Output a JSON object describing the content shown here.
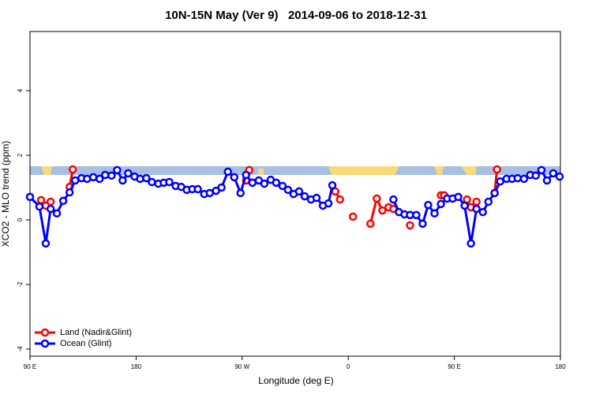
{
  "chart_data": {
    "type": "line",
    "title": "10N-15N May (Ver 9)   2014-09-06 to 2018-12-31",
    "x_label": "Longitude (deg E)",
    "y_label": "XCO2 - MLO trend (ppm)",
    "xlim": [
      90,
      540
    ],
    "ylim": [
      -4.22,
      5.83
    ],
    "xticks": [
      {
        "value": 90,
        "label": "90 E"
      },
      180,
      {
        "value": 270,
        "label": "90 W"
      },
      {
        "value": 360,
        "label": "0"
      },
      {
        "value": 450,
        "label": "90 E"
      },
      {
        "value": 540,
        "label": "180"
      }
    ],
    "yticks": [
      -4,
      -2,
      0,
      2,
      4
    ],
    "legend": "bottom-left",
    "series": [
      {
        "name": "Land (Nadir&Glint)",
        "color": "#ff0000",
        "x": [
          99.4,
          103.4,
          107.5,
          null,
          123.6,
          126.3,
          null,
          273.3,
          276,
          null,
          349,
          353,
          null,
          364,
          null,
          378.8,
          384.2,
          388.9,
          394.2,
          398.3,
          null,
          412.4,
          null,
          438.6,
          441.3,
          null,
          460.7,
          464.1,
          468.8,
          null,
          484.2,
          486.2
        ],
        "values": [
          0.61,
          0.44,
          0.56,
          null,
          1.02,
          1.56,
          null,
          1.22,
          1.54,
          null,
          0.88,
          0.63,
          null,
          0.1,
          null,
          -0.12,
          0.66,
          0.29,
          0.39,
          0.34,
          null,
          -0.17,
          null,
          0.76,
          0.76,
          null,
          0.63,
          0.39,
          0.56,
          null,
          0.83,
          1.56
        ]
      },
      {
        "name": "Ocean (Glint)",
        "color": "#0000ff",
        "x": [
          90,
          98,
          103.4,
          107.5,
          112.8,
          118.2,
          123.6,
          128.3,
          133.7,
          138.4,
          143.7,
          149.1,
          153.8,
          159.2,
          163.9,
          168.6,
          173.3,
          178.7,
          183.4,
          188.7,
          193.4,
          198.8,
          203.5,
          208.2,
          213.6,
          218.3,
          223,
          227.7,
          232.4,
          237.8,
          242.5,
          247.8,
          252.5,
          257.9,
          263.3,
          268.6,
          273.3,
          278.7,
          284.1,
          288.8,
          294.2,
          298.9,
          304.2,
          308.9,
          313.6,
          318.3,
          323,
          328.4,
          333.1,
          338.5,
          343.2,
          346.5,
          null,
          398.3,
          403,
          407.7,
          412.4,
          417.7,
          423.1,
          427.8,
          433.2,
          438.6,
          443.9,
          448.6,
          453.3,
          458.7,
          464.1,
          468.8,
          474.2,
          478.9,
          484.2,
          488.9,
          494.3,
          499,
          503.7,
          509.1,
          514.4,
          519.1,
          523.9,
          528.6,
          533.9,
          539.3
        ],
        "values": [
          0.71,
          0.41,
          -0.73,
          0.34,
          0.2,
          0.59,
          0.85,
          1.22,
          1.29,
          1.27,
          1.32,
          1.27,
          1.39,
          1.37,
          1.54,
          1.22,
          1.44,
          1.34,
          1.27,
          1.29,
          1.17,
          1.12,
          1.15,
          1.17,
          1.05,
          1.02,
          0.93,
          0.95,
          0.95,
          0.8,
          0.83,
          0.9,
          1.0,
          1.49,
          1.32,
          0.83,
          1.39,
          1.15,
          1.22,
          1.12,
          1.24,
          1.15,
          1.05,
          0.93,
          0.8,
          0.88,
          0.73,
          0.63,
          0.68,
          0.44,
          0.51,
          1.07,
          null,
          0.63,
          0.24,
          0.17,
          0.15,
          0.15,
          -0.12,
          0.46,
          0.2,
          0.49,
          0.66,
          0.66,
          0.71,
          0.44,
          -0.73,
          0.34,
          0.24,
          0.56,
          0.83,
          1.19,
          1.27,
          1.27,
          1.29,
          1.27,
          1.39,
          1.37,
          1.54,
          1.22,
          1.44,
          1.34
        ]
      }
    ]
  }
}
